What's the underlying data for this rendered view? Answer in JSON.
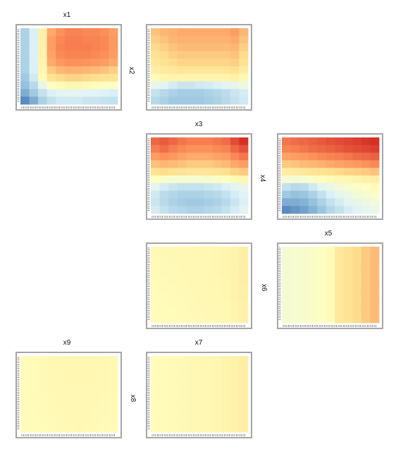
{
  "chart_data": [
    {
      "type": "heatmap",
      "title": "x1",
      "side_label": "x2",
      "values": [
        [
          -0.55,
          -0.35,
          0.15,
          0.55,
          0.65,
          0.7,
          0.7,
          0.68,
          0.68,
          0.66,
          0.6
        ],
        [
          -0.55,
          -0.35,
          0.15,
          0.6,
          0.68,
          0.72,
          0.72,
          0.7,
          0.7,
          0.68,
          0.62
        ],
        [
          -0.55,
          -0.35,
          0.15,
          0.6,
          0.7,
          0.72,
          0.72,
          0.72,
          0.7,
          0.68,
          0.62
        ],
        [
          -0.55,
          -0.35,
          0.15,
          0.58,
          0.68,
          0.7,
          0.7,
          0.7,
          0.68,
          0.66,
          0.6
        ],
        [
          -0.55,
          -0.35,
          0.12,
          0.55,
          0.62,
          0.65,
          0.65,
          0.64,
          0.62,
          0.6,
          0.55
        ],
        [
          -0.55,
          -0.35,
          0.1,
          0.42,
          0.5,
          0.52,
          0.52,
          0.5,
          0.48,
          0.45,
          0.4
        ],
        [
          -0.6,
          -0.4,
          0.05,
          0.3,
          0.35,
          0.38,
          0.38,
          0.36,
          0.34,
          0.32,
          0.3
        ],
        [
          -0.65,
          -0.5,
          -0.25,
          0.0,
          0.05,
          0.08,
          0.08,
          0.05,
          0.02,
          0.0,
          -0.02
        ],
        [
          -0.75,
          -0.6,
          -0.45,
          -0.35,
          -0.3,
          -0.28,
          -0.28,
          -0.3,
          -0.32,
          -0.34,
          -0.36
        ],
        [
          -0.9,
          -0.75,
          -0.55,
          -0.45,
          -0.4,
          -0.4,
          -0.4,
          -0.42,
          -0.42,
          -0.44,
          -0.45
        ]
      ]
    },
    {
      "type": "heatmap",
      "title": "",
      "side_label": "",
      "values": [
        [
          0.45,
          0.5,
          0.52,
          0.55,
          0.55,
          0.55,
          0.55,
          0.55,
          0.55,
          0.6,
          0.5
        ],
        [
          0.4,
          0.45,
          0.5,
          0.52,
          0.52,
          0.52,
          0.52,
          0.52,
          0.52,
          0.55,
          0.45
        ],
        [
          0.35,
          0.4,
          0.45,
          0.48,
          0.48,
          0.48,
          0.48,
          0.48,
          0.48,
          0.5,
          0.4
        ],
        [
          0.3,
          0.35,
          0.4,
          0.42,
          0.42,
          0.42,
          0.42,
          0.42,
          0.42,
          0.45,
          0.35
        ],
        [
          0.25,
          0.3,
          0.35,
          0.38,
          0.38,
          0.38,
          0.38,
          0.38,
          0.38,
          0.4,
          0.3
        ],
        [
          0.18,
          0.22,
          0.25,
          0.28,
          0.28,
          0.28,
          0.28,
          0.28,
          0.28,
          0.3,
          0.2
        ],
        [
          0.05,
          0.1,
          0.12,
          0.12,
          0.12,
          0.12,
          0.12,
          0.12,
          0.12,
          0.15,
          0.08
        ],
        [
          -0.25,
          -0.3,
          -0.38,
          -0.42,
          -0.42,
          -0.4,
          -0.38,
          -0.35,
          -0.3,
          -0.25,
          -0.2
        ],
        [
          -0.45,
          -0.5,
          -0.55,
          -0.58,
          -0.58,
          -0.58,
          -0.55,
          -0.52,
          -0.48,
          -0.42,
          -0.38
        ],
        [
          -0.5,
          -0.55,
          -0.6,
          -0.6,
          -0.6,
          -0.6,
          -0.58,
          -0.55,
          -0.5,
          -0.45,
          -0.4
        ]
      ]
    },
    {
      "type": "heatmap",
      "title": "x3",
      "side_label": "x4",
      "values": [
        [
          0.8,
          0.85,
          0.8,
          0.75,
          0.72,
          0.72,
          0.72,
          0.75,
          0.78,
          0.9,
          1.0
        ],
        [
          0.72,
          0.78,
          0.72,
          0.68,
          0.65,
          0.65,
          0.65,
          0.68,
          0.7,
          0.8,
          0.88
        ],
        [
          0.6,
          0.65,
          0.62,
          0.58,
          0.55,
          0.55,
          0.55,
          0.58,
          0.6,
          0.68,
          0.75
        ],
        [
          0.45,
          0.5,
          0.48,
          0.45,
          0.42,
          0.42,
          0.42,
          0.45,
          0.48,
          0.55,
          0.6
        ],
        [
          0.3,
          0.35,
          0.32,
          0.3,
          0.28,
          0.28,
          0.28,
          0.3,
          0.32,
          0.38,
          0.42
        ],
        [
          0.0,
          -0.05,
          -0.1,
          -0.1,
          -0.1,
          -0.1,
          -0.08,
          -0.05,
          0.0,
          0.05,
          0.1
        ],
        [
          -0.3,
          -0.38,
          -0.42,
          -0.45,
          -0.45,
          -0.45,
          -0.42,
          -0.4,
          -0.35,
          -0.3,
          -0.25
        ],
        [
          -0.4,
          -0.48,
          -0.52,
          -0.55,
          -0.55,
          -0.55,
          -0.52,
          -0.5,
          -0.45,
          -0.38,
          -0.32
        ],
        [
          -0.42,
          -0.5,
          -0.55,
          -0.58,
          -0.6,
          -0.6,
          -0.58,
          -0.55,
          -0.5,
          -0.42,
          -0.35
        ],
        [
          -0.38,
          -0.45,
          -0.5,
          -0.52,
          -0.55,
          -0.55,
          -0.52,
          -0.5,
          -0.45,
          -0.38,
          -0.3
        ]
      ]
    },
    {
      "type": "heatmap",
      "title": "x5",
      "side_label": "",
      "values": [
        [
          0.75,
          0.78,
          0.8,
          0.82,
          0.85,
          0.88,
          0.9,
          0.92,
          0.95,
          0.98,
          1.0
        ],
        [
          0.7,
          0.72,
          0.75,
          0.78,
          0.8,
          0.82,
          0.85,
          0.88,
          0.9,
          0.92,
          0.95
        ],
        [
          0.58,
          0.6,
          0.62,
          0.65,
          0.68,
          0.7,
          0.72,
          0.75,
          0.78,
          0.8,
          0.82
        ],
        [
          0.42,
          0.45,
          0.48,
          0.5,
          0.52,
          0.55,
          0.58,
          0.6,
          0.62,
          0.65,
          0.68
        ],
        [
          0.2,
          0.22,
          0.25,
          0.28,
          0.3,
          0.32,
          0.35,
          0.38,
          0.4,
          0.42,
          0.45
        ],
        [
          -0.1,
          -0.12,
          -0.1,
          -0.05,
          0.0,
          0.05,
          0.08,
          0.1,
          0.12,
          0.15,
          0.18
        ],
        [
          -0.45,
          -0.5,
          -0.48,
          -0.4,
          -0.3,
          -0.22,
          -0.15,
          -0.1,
          -0.05,
          0.0,
          0.05
        ],
        [
          -0.6,
          -0.65,
          -0.62,
          -0.55,
          -0.45,
          -0.35,
          -0.28,
          -0.2,
          -0.15,
          -0.1,
          -0.05
        ],
        [
          -0.75,
          -0.75,
          -0.72,
          -0.65,
          -0.55,
          -0.45,
          -0.38,
          -0.3,
          -0.25,
          -0.2,
          -0.15
        ],
        [
          -0.9,
          -0.85,
          -0.8,
          -0.72,
          -0.62,
          -0.52,
          -0.45,
          -0.38,
          -0.32,
          -0.28,
          -0.22
        ]
      ]
    },
    {
      "type": "heatmap",
      "title": "",
      "side_label": "x6",
      "values": [
        [
          0.06,
          0.07,
          0.07,
          0.08,
          0.08,
          0.09,
          0.09,
          0.1,
          0.11,
          0.13,
          0.18
        ],
        [
          0.05,
          0.06,
          0.07,
          0.07,
          0.08,
          0.08,
          0.09,
          0.1,
          0.11,
          0.13,
          0.18
        ],
        [
          0.05,
          0.06,
          0.06,
          0.07,
          0.08,
          0.08,
          0.09,
          0.1,
          0.11,
          0.13,
          0.18
        ],
        [
          0.05,
          0.06,
          0.06,
          0.07,
          0.07,
          0.08,
          0.09,
          0.1,
          0.11,
          0.13,
          0.17
        ],
        [
          0.04,
          0.05,
          0.06,
          0.06,
          0.07,
          0.08,
          0.08,
          0.09,
          0.1,
          0.12,
          0.17
        ],
        [
          0.04,
          0.05,
          0.05,
          0.06,
          0.07,
          0.07,
          0.08,
          0.09,
          0.1,
          0.12,
          0.16
        ],
        [
          0.04,
          0.04,
          0.05,
          0.06,
          0.06,
          0.07,
          0.08,
          0.09,
          0.1,
          0.12,
          0.16
        ],
        [
          0.03,
          0.04,
          0.05,
          0.05,
          0.06,
          0.07,
          0.07,
          0.08,
          0.09,
          0.11,
          0.15
        ],
        [
          0.03,
          0.04,
          0.04,
          0.05,
          0.06,
          0.06,
          0.07,
          0.08,
          0.09,
          0.11,
          0.15
        ],
        [
          0.03,
          0.03,
          0.04,
          0.05,
          0.05,
          0.06,
          0.07,
          0.08,
          0.09,
          0.11,
          0.15
        ]
      ]
    },
    {
      "type": "heatmap",
      "title": "",
      "side_label": "",
      "values": [
        [
          -0.12,
          -0.1,
          -0.08,
          -0.05,
          -0.02,
          0.05,
          0.25,
          0.3,
          0.35,
          0.42,
          0.48
        ],
        [
          -0.12,
          -0.1,
          -0.08,
          -0.05,
          -0.02,
          0.05,
          0.25,
          0.3,
          0.35,
          0.42,
          0.48
        ],
        [
          -0.12,
          -0.1,
          -0.08,
          -0.05,
          -0.02,
          0.05,
          0.25,
          0.3,
          0.35,
          0.42,
          0.48
        ],
        [
          -0.12,
          -0.1,
          -0.08,
          -0.05,
          -0.02,
          0.05,
          0.25,
          0.3,
          0.35,
          0.42,
          0.48
        ],
        [
          -0.12,
          -0.1,
          -0.08,
          -0.05,
          -0.02,
          0.05,
          0.25,
          0.3,
          0.35,
          0.42,
          0.48
        ],
        [
          -0.12,
          -0.1,
          -0.08,
          -0.05,
          -0.02,
          0.05,
          0.25,
          0.3,
          0.35,
          0.42,
          0.48
        ],
        [
          -0.12,
          -0.1,
          -0.08,
          -0.05,
          -0.02,
          0.05,
          0.25,
          0.3,
          0.35,
          0.42,
          0.48
        ],
        [
          -0.12,
          -0.1,
          -0.08,
          -0.05,
          -0.02,
          0.05,
          0.25,
          0.3,
          0.35,
          0.42,
          0.48
        ],
        [
          -0.12,
          -0.1,
          -0.08,
          -0.05,
          -0.02,
          0.05,
          0.25,
          0.3,
          0.35,
          0.42,
          0.48
        ],
        [
          -0.12,
          -0.1,
          -0.08,
          -0.05,
          -0.02,
          0.05,
          0.25,
          0.3,
          0.35,
          0.42,
          0.48
        ]
      ]
    },
    {
      "type": "heatmap",
      "title": "x9",
      "side_label": "",
      "values": [
        [
          0.04,
          0.05,
          0.06,
          0.07,
          0.08,
          0.09,
          0.09,
          0.09,
          0.08,
          0.07,
          0.06
        ],
        [
          0.04,
          0.05,
          0.06,
          0.07,
          0.08,
          0.09,
          0.09,
          0.09,
          0.08,
          0.07,
          0.06
        ],
        [
          0.04,
          0.05,
          0.06,
          0.07,
          0.08,
          0.09,
          0.09,
          0.09,
          0.08,
          0.07,
          0.06
        ],
        [
          0.04,
          0.05,
          0.06,
          0.07,
          0.08,
          0.08,
          0.09,
          0.08,
          0.08,
          0.07,
          0.06
        ],
        [
          0.04,
          0.05,
          0.06,
          0.07,
          0.07,
          0.08,
          0.08,
          0.08,
          0.07,
          0.07,
          0.06
        ],
        [
          0.04,
          0.05,
          0.05,
          0.06,
          0.07,
          0.08,
          0.08,
          0.08,
          0.07,
          0.06,
          0.05
        ],
        [
          0.03,
          0.04,
          0.05,
          0.06,
          0.07,
          0.07,
          0.08,
          0.07,
          0.07,
          0.06,
          0.05
        ],
        [
          0.03,
          0.04,
          0.05,
          0.06,
          0.06,
          0.07,
          0.07,
          0.07,
          0.06,
          0.06,
          0.05
        ],
        [
          0.03,
          0.04,
          0.05,
          0.05,
          0.06,
          0.07,
          0.07,
          0.07,
          0.06,
          0.05,
          0.05
        ],
        [
          0.03,
          0.04,
          0.04,
          0.05,
          0.06,
          0.06,
          0.07,
          0.06,
          0.06,
          0.05,
          0.04
        ]
      ]
    },
    {
      "type": "heatmap",
      "title": "x7",
      "side_label": "x8",
      "values": [
        [
          0.03,
          0.04,
          0.05,
          0.06,
          0.07,
          0.08,
          0.09,
          0.1,
          0.12,
          0.14,
          0.18
        ],
        [
          0.03,
          0.04,
          0.05,
          0.06,
          0.07,
          0.08,
          0.09,
          0.1,
          0.12,
          0.14,
          0.18
        ],
        [
          0.03,
          0.04,
          0.05,
          0.06,
          0.07,
          0.08,
          0.09,
          0.1,
          0.12,
          0.14,
          0.18
        ],
        [
          0.03,
          0.04,
          0.05,
          0.06,
          0.07,
          0.08,
          0.09,
          0.1,
          0.12,
          0.14,
          0.18
        ],
        [
          0.03,
          0.04,
          0.05,
          0.06,
          0.07,
          0.08,
          0.09,
          0.1,
          0.12,
          0.14,
          0.18
        ],
        [
          0.03,
          0.04,
          0.05,
          0.06,
          0.07,
          0.08,
          0.09,
          0.1,
          0.12,
          0.14,
          0.18
        ],
        [
          0.03,
          0.04,
          0.05,
          0.06,
          0.07,
          0.08,
          0.09,
          0.1,
          0.12,
          0.14,
          0.18
        ],
        [
          0.03,
          0.04,
          0.05,
          0.06,
          0.07,
          0.08,
          0.09,
          0.1,
          0.12,
          0.14,
          0.18
        ],
        [
          0.03,
          0.04,
          0.05,
          0.06,
          0.07,
          0.08,
          0.09,
          0.1,
          0.12,
          0.14,
          0.18
        ],
        [
          0.03,
          0.04,
          0.05,
          0.06,
          0.07,
          0.08,
          0.09,
          0.1,
          0.12,
          0.14,
          0.18
        ]
      ]
    }
  ],
  "colors": {
    "scale": [
      "#4575b4",
      "#91bfdb",
      "#e0f3f8",
      "#ffffbf",
      "#fee090",
      "#fc8d59",
      "#d73027"
    ],
    "frame": "#a6a6a6",
    "tick": "#555555"
  }
}
